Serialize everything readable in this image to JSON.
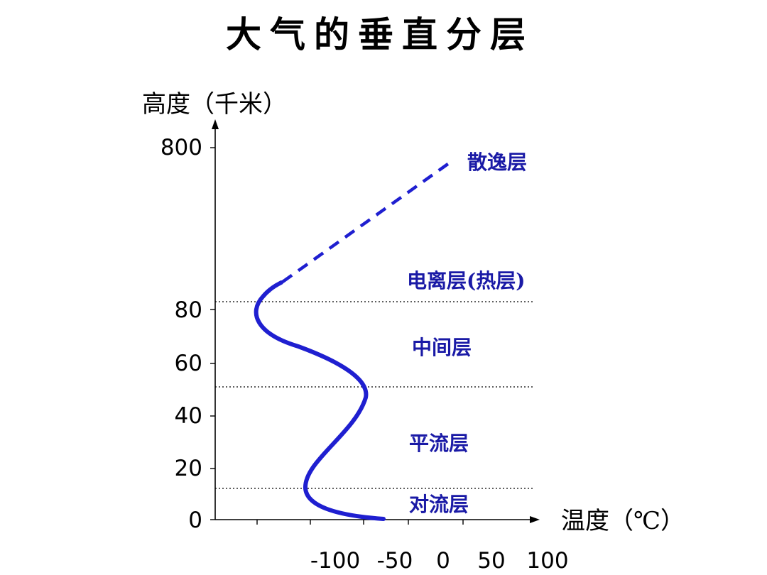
{
  "title": "大气的垂直分层",
  "y_axis": {
    "title": "高度（千米）",
    "tick_labels": [
      "0",
      "20",
      "40",
      "60",
      "80",
      "800"
    ]
  },
  "x_axis": {
    "title": "温度（℃）",
    "tick_labels": [
      "-100",
      "-50",
      "0",
      "50",
      "100"
    ]
  },
  "layers": {
    "troposphere": "对流层",
    "stratosphere": "平流层",
    "mesosphere": "中间层",
    "thermosphere": "电离层(热层)",
    "exosphere": "散逸层"
  },
  "colors": {
    "curve": "#1f1fd0",
    "labels": "#1a1aa6",
    "axes": "#000000"
  }
}
